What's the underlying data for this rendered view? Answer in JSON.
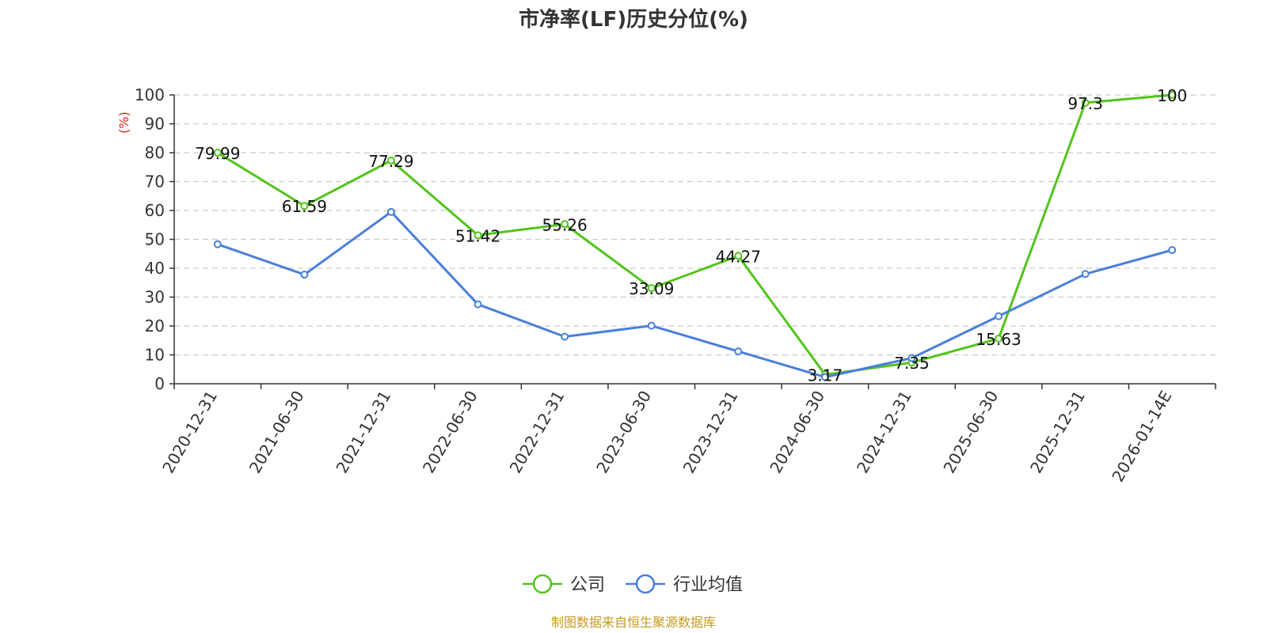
{
  "chart_data": {
    "type": "line",
    "title": "市净率(LF)历史分位(%)",
    "ylabel": "(%)",
    "ylim": [
      0,
      100
    ],
    "yticks": [
      0,
      10,
      20,
      30,
      40,
      50,
      60,
      70,
      80,
      90,
      100
    ],
    "categories": [
      "2020-12-31",
      "2021-06-30",
      "2021-12-31",
      "2022-06-30",
      "2022-12-31",
      "2023-06-30",
      "2023-12-31",
      "2024-06-30",
      "2024-12-31",
      "2025-06-30",
      "2025-12-31",
      "2026-01-14E"
    ],
    "grid": true,
    "legend_position": "bottom-center",
    "series": [
      {
        "name": "公司",
        "color": "#52c41a",
        "show_labels": true,
        "values": [
          79.99,
          61.59,
          77.29,
          51.42,
          55.26,
          33.09,
          44.27,
          3.17,
          7.35,
          15.63,
          97.3,
          100
        ]
      },
      {
        "name": "行业均值",
        "color": "#4a7fdb",
        "show_labels": false,
        "values": [
          48.3,
          37.8,
          59.5,
          27.5,
          16.3,
          20.1,
          11.2,
          2.3,
          8.9,
          23.4,
          38.0,
          46.3
        ]
      }
    ],
    "source": "制图数据来自恒生聚源数据库"
  },
  "colors": {
    "axis": "#333333",
    "grid": "#cccccc",
    "source": "#c49a1e",
    "yunit": "#e02020"
  }
}
